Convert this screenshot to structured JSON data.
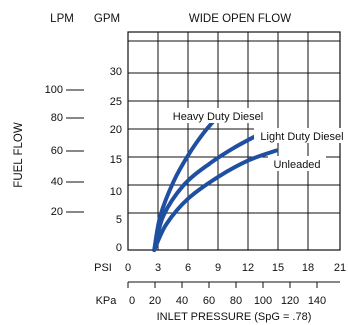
{
  "chart_data": {
    "type": "line",
    "title": "WIDE OPEN FLOW",
    "ylabel": "FUEL FLOW",
    "xlabel": "INLET PRESSURE (SpG = .78)",
    "units": {
      "lpm": "LPM",
      "gpm": "GPM",
      "psi": "PSI",
      "kpa": "KPa"
    },
    "gpm_axis": {
      "ticks": [
        "0",
        "5",
        "10",
        "15",
        "20",
        "25",
        "30"
      ],
      "range": [
        0,
        32
      ]
    },
    "lpm_axis": {
      "ticks": [
        "100",
        "80",
        "60",
        "40",
        "20"
      ]
    },
    "psi_axis": {
      "ticks": [
        "0",
        "3",
        "6",
        "9",
        "12",
        "15",
        "18",
        "21"
      ],
      "range": [
        0,
        21
      ]
    },
    "kpa_axis": {
      "ticks": [
        "0",
        "20",
        "40",
        "60",
        "80",
        "100",
        "120",
        "140"
      ]
    },
    "grid": true,
    "series": [
      {
        "name": "Heavy Duty Diesel",
        "color": "#1f4fa0",
        "x": [
          2.6,
          3.2,
          4.5,
          6.0,
          7.5,
          9.3
        ],
        "y": [
          0,
          5,
          10,
          14,
          17.2,
          20.3
        ]
      },
      {
        "name": "Light Duty Diesel",
        "color": "#1f4fa0",
        "x": [
          2.6,
          3.5,
          5.5,
          8.0,
          10.5,
          13.0
        ],
        "y": [
          0,
          5,
          9.5,
          12.6,
          15.0,
          17.0
        ]
      },
      {
        "name": "Unleaded",
        "color": "#1f4fa0",
        "x": [
          2.6,
          3.8,
          6.0,
          9.0,
          12.0,
          14.7
        ],
        "y": [
          0,
          3.8,
          7.6,
          10.8,
          13.2,
          14.6
        ]
      }
    ]
  }
}
